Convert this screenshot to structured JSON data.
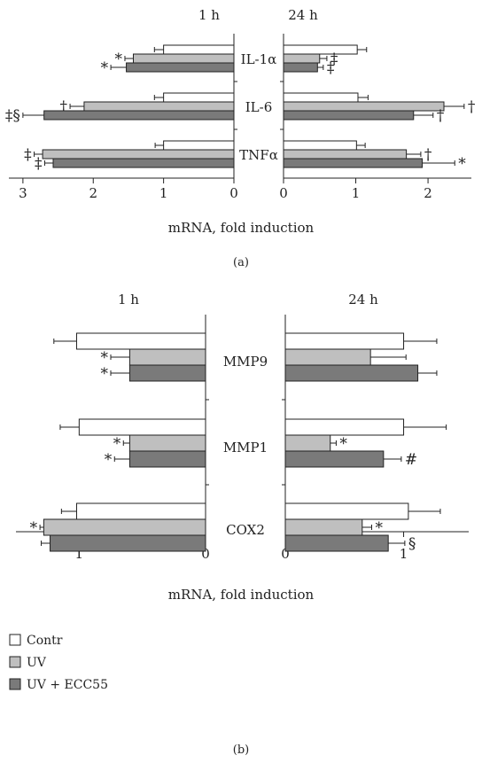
{
  "figure": {
    "legend": [
      {
        "label": "Contr",
        "color": "#ffffff"
      },
      {
        "label": "UV",
        "color": "#bfbfbf"
      },
      {
        "label": "UV + ECC55",
        "color": "#7a7a7a"
      }
    ],
    "colors": {
      "axis": "#222222",
      "bar_stroke": "#222222"
    }
  },
  "chart_data": [
    {
      "type": "bar",
      "orientation": "horizontal",
      "panel_label": "(a)",
      "xlabel": "mRNA, fold induction",
      "series_names": [
        "Contr",
        "UV",
        "UV + ECC55"
      ],
      "categories": [
        "IL-1α",
        "IL-6",
        "TNFα"
      ],
      "subplots": [
        {
          "title": "1 h",
          "direction": "left",
          "xlim": [
            0,
            3.2
          ],
          "ticks": [
            3,
            2,
            1,
            0
          ],
          "values": [
            [
              1.0,
              1.43,
              1.53
            ],
            [
              1.0,
              2.13,
              2.7
            ],
            [
              1.0,
              2.72,
              2.57
            ]
          ],
          "errors": [
            [
              0.13,
              0.12,
              0.22
            ],
            [
              0.13,
              0.2,
              0.3
            ],
            [
              0.12,
              0.12,
              0.12
            ]
          ],
          "markers": [
            [
              "",
              "*",
              "*"
            ],
            [
              "",
              "†",
              "‡§"
            ],
            [
              "",
              "‡",
              "‡"
            ]
          ]
        },
        {
          "title": "24 h",
          "direction": "right",
          "xlim": [
            0,
            2.6
          ],
          "ticks": [
            0,
            1,
            2
          ],
          "values": [
            [
              1.02,
              0.5,
              0.47
            ],
            [
              1.03,
              2.22,
              1.8
            ],
            [
              1.01,
              1.7,
              1.92
            ]
          ],
          "errors": [
            [
              0.13,
              0.1,
              0.08
            ],
            [
              0.14,
              0.28,
              0.27
            ],
            [
              0.12,
              0.2,
              0.45
            ]
          ],
          "markers": [
            [
              "",
              "‡",
              "‡"
            ],
            [
              "",
              "†",
              "†"
            ],
            [
              "",
              "†",
              "*"
            ]
          ]
        }
      ]
    },
    {
      "type": "bar",
      "orientation": "horizontal",
      "panel_label": "(b)",
      "xlabel": "mRNA, fold induction",
      "series_names": [
        "Contr",
        "UV",
        "UV + ECC55"
      ],
      "categories": [
        "MMP9",
        "MMP1",
        "COX2"
      ],
      "subplots": [
        {
          "title": "1 h",
          "direction": "left",
          "xlim": [
            0,
            1.5
          ],
          "ticks": [
            1,
            0
          ],
          "values": [
            [
              1.02,
              0.6,
              0.6
            ],
            [
              1.0,
              0.6,
              0.6
            ],
            [
              1.02,
              1.28,
              1.23
            ]
          ],
          "errors": [
            [
              0.18,
              0.15,
              0.15
            ],
            [
              0.15,
              0.05,
              0.12
            ],
            [
              0.12,
              0.03,
              0.07
            ]
          ],
          "markers": [
            [
              "",
              "*",
              "*"
            ],
            [
              "",
              "*",
              "*"
            ],
            [
              "",
              "*",
              ""
            ]
          ]
        },
        {
          "title": "24 h",
          "direction": "right",
          "xlim": [
            0,
            1.55
          ],
          "ticks": [
            0,
            1
          ],
          "values": [
            [
              1.0,
              0.72,
              1.12
            ],
            [
              1.0,
              0.38,
              0.83
            ],
            [
              1.04,
              0.65,
              0.87
            ]
          ],
          "errors": [
            [
              0.28,
              0.3,
              0.16
            ],
            [
              0.36,
              0.05,
              0.15
            ],
            [
              0.27,
              0.08,
              0.14
            ]
          ],
          "markers": [
            [
              "",
              "",
              ""
            ],
            [
              "",
              "*",
              "#"
            ],
            [
              "",
              "*",
              "§"
            ]
          ]
        }
      ]
    }
  ]
}
